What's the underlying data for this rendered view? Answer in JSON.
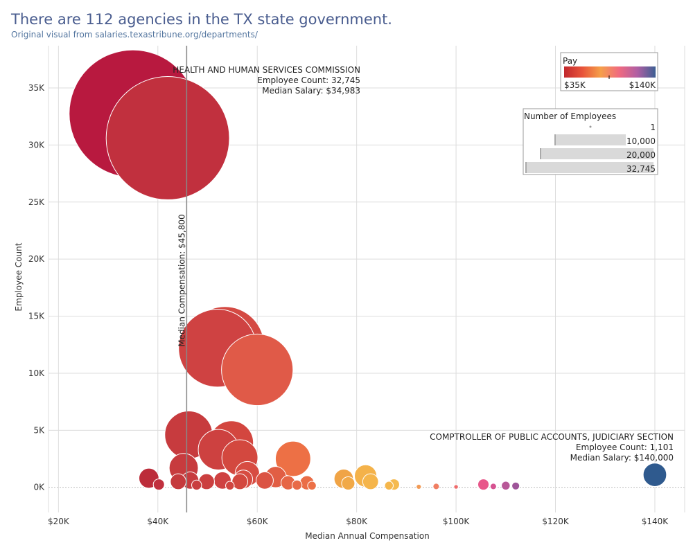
{
  "page": {
    "title": "There are 112 agencies in the TX state government.",
    "subtitle": "Original visual from salaries.texastribune.org/departments/"
  },
  "chart_data": {
    "type": "scatter",
    "title": "There are 112 agencies in the TX state government.",
    "subtitle": "Original visual from salaries.texastribune.org/departments/",
    "xlabel": "Median Annual Compensation",
    "ylabel": "Employee Count",
    "xlim": [
      18000,
      146000
    ],
    "ylim": [
      -2200,
      38700
    ],
    "xticks": [
      20000,
      40000,
      60000,
      80000,
      100000,
      120000,
      140000
    ],
    "xtick_labels": [
      "$20K",
      "$40K",
      "$60K",
      "$80K",
      "$100K",
      "$120K",
      "$140K"
    ],
    "yticks": [
      0,
      5000,
      10000,
      15000,
      20000,
      25000,
      30000,
      35000
    ],
    "ytick_labels": [
      "0K",
      "5K",
      "10K",
      "15K",
      "20K",
      "25K",
      "30K",
      "35K"
    ],
    "grid": true,
    "size_encoding": "Number of Employees",
    "color_encoding": "Pay",
    "median_line": {
      "x": 45800,
      "label": "Median Compensation: $45,800"
    },
    "annotations": [
      {
        "x": 34983,
        "y": 32745,
        "lines": [
          "HEALTH AND HUMAN SERVICES COMMISSION",
          "Employee Count: 32,745",
          "Median Salary: $34,983"
        ]
      },
      {
        "x": 140000,
        "y": 1101,
        "lines": [
          "COMPTROLLER OF PUBLIC ACCOUNTS, JUDICIARY SECTION",
          "Employee Count: 1,101",
          "Median Salary: $140,000"
        ]
      }
    ],
    "color_legend": {
      "title": "Pay",
      "min_label": "$35K",
      "max_label": "$140K",
      "colors": [
        "#c1272d",
        "#e8543a",
        "#f5a04a",
        "#f06a80",
        "#b05fa3",
        "#3c5f93"
      ]
    },
    "size_legend": {
      "title": "Number of Employees",
      "entries": [
        "1",
        "10,000",
        "20,000",
        "32,745"
      ]
    },
    "points": [
      {
        "x": 34983,
        "y": 32745,
        "color": "#b8193f"
      },
      {
        "x": 42000,
        "y": 30600,
        "color": "#c1303e"
      },
      {
        "x": 53500,
        "y": 12400,
        "color": "#d44a43"
      },
      {
        "x": 52000,
        "y": 12200,
        "color": "#cf4242"
      },
      {
        "x": 60000,
        "y": 10300,
        "color": "#e05a48"
      },
      {
        "x": 46200,
        "y": 4600,
        "color": "#c73b3e"
      },
      {
        "x": 54800,
        "y": 3900,
        "color": "#d3463f"
      },
      {
        "x": 52200,
        "y": 3300,
        "color": "#cd4140"
      },
      {
        "x": 56500,
        "y": 2600,
        "color": "#d3483f"
      },
      {
        "x": 45200,
        "y": 1700,
        "color": "#c73b3e"
      },
      {
        "x": 58000,
        "y": 1200,
        "color": "#d74c42"
      },
      {
        "x": 67200,
        "y": 2500,
        "color": "#ed7045"
      },
      {
        "x": 38200,
        "y": 800,
        "color": "#bc2c3a"
      },
      {
        "x": 40200,
        "y": 250,
        "color": "#c1303e"
      },
      {
        "x": 44100,
        "y": 500,
        "color": "#c53a3d"
      },
      {
        "x": 46500,
        "y": 600,
        "color": "#c73b3e"
      },
      {
        "x": 47800,
        "y": 200,
        "color": "#c93d3e"
      },
      {
        "x": 49800,
        "y": 500,
        "color": "#cb3f3f"
      },
      {
        "x": 53000,
        "y": 600,
        "color": "#cf4242"
      },
      {
        "x": 54500,
        "y": 150,
        "color": "#d14540"
      },
      {
        "x": 56500,
        "y": 500,
        "color": "#d3483f"
      },
      {
        "x": 57200,
        "y": 700,
        "color": "#d74c42"
      },
      {
        "x": 61500,
        "y": 600,
        "color": "#db5343"
      },
      {
        "x": 63700,
        "y": 900,
        "color": "#e15e44"
      },
      {
        "x": 66200,
        "y": 400,
        "color": "#e66646"
      },
      {
        "x": 68000,
        "y": 200,
        "color": "#e86a47"
      },
      {
        "x": 70000,
        "y": 400,
        "color": "#ea6d47"
      },
      {
        "x": 71000,
        "y": 150,
        "color": "#ec7047"
      },
      {
        "x": 77400,
        "y": 750,
        "color": "#f0a446"
      },
      {
        "x": 78300,
        "y": 350,
        "color": "#f1a947"
      },
      {
        "x": 81800,
        "y": 1000,
        "color": "#f4b24a"
      },
      {
        "x": 82800,
        "y": 500,
        "color": "#f5b54b"
      },
      {
        "x": 86500,
        "y": 150,
        "color": "#f5b74c"
      },
      {
        "x": 87500,
        "y": 250,
        "color": "#f5ba4f"
      },
      {
        "x": 92500,
        "y": 50,
        "color": "#f29a55"
      },
      {
        "x": 96000,
        "y": 80,
        "color": "#f07e62"
      },
      {
        "x": 100000,
        "y": 40,
        "color": "#ee6b6b"
      },
      {
        "x": 105500,
        "y": 250,
        "color": "#e8578a"
      },
      {
        "x": 107500,
        "y": 80,
        "color": "#d65391"
      },
      {
        "x": 110000,
        "y": 150,
        "color": "#b85898"
      },
      {
        "x": 112000,
        "y": 120,
        "color": "#9e5599"
      },
      {
        "x": 140000,
        "y": 1101,
        "color": "#2f5a8e"
      }
    ]
  }
}
